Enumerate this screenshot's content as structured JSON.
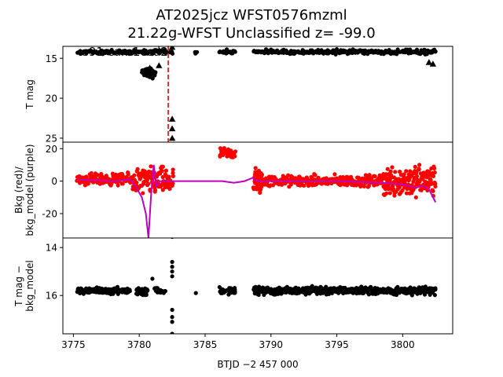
{
  "figure": {
    "title_line1": "AT2025jcz  WFST0576mzml",
    "title_line2": "21.22g-WFST Unclassified z= -99.0"
  },
  "chart_data": [
    {
      "type": "scatter",
      "panel": "top",
      "ylabel": "T mag",
      "ylim": [
        25.5,
        13.5
      ],
      "yinverted": true,
      "yticks": [
        15,
        20,
        25
      ],
      "annotation": "s91 cam1ccd2",
      "vline_x": 3782.2,
      "vline_color": "#d62728",
      "series": [
        {
          "name": "T mag",
          "color": "#000000",
          "marker": "circle",
          "segments": [
            {
              "x0": 3775.3,
              "x1": 3782.5,
              "y": 14.2,
              "jitter": 0.35,
              "n": 110
            },
            {
              "x0": 3780.2,
              "x1": 3781.2,
              "y": 16.8,
              "jitter": 0.9,
              "n": 45
            },
            {
              "x0": 3784.2,
              "x1": 3784.4,
              "y": 14.2,
              "jitter": 0.3,
              "n": 3
            },
            {
              "x0": 3786.1,
              "x1": 3787.3,
              "y": 14.2,
              "jitter": 0.4,
              "n": 20
            },
            {
              "x0": 3788.7,
              "x1": 3802.5,
              "y": 14.2,
              "jitter": 0.4,
              "n": 240
            }
          ]
        },
        {
          "name": "upper limits",
          "color": "#000000",
          "marker": "triangle-up",
          "points": [
            [
              3802.0,
              15.5
            ],
            [
              3802.3,
              15.7
            ],
            [
              3780.8,
              16.2
            ],
            [
              3781.5,
              15.9
            ],
            [
              3782.5,
              13.6
            ],
            [
              3782.5,
              22.6
            ],
            [
              3782.5,
              23.8
            ],
            [
              3782.5,
              25.0
            ]
          ]
        }
      ]
    },
    {
      "type": "line",
      "panel": "middle",
      "ylabel": "Bkg (red)/\nbkg_model (purple)",
      "ylim": [
        -35,
        24
      ],
      "yticks": [
        20,
        0,
        -20
      ],
      "series": [
        {
          "name": "Bkg",
          "color": "#ff0000",
          "marker": "circle",
          "segments": [
            {
              "x0": 3775.3,
              "x1": 3779.5,
              "y": 1,
              "jitter": 5,
              "n": 140
            },
            {
              "x0": 3779.5,
              "x1": 3782.6,
              "y": 0,
              "jitter": 12,
              "n": 120
            },
            {
              "x0": 3786.1,
              "x1": 3787.3,
              "y": 17,
              "jitter": 5,
              "n": 40
            },
            {
              "x0": 3788.7,
              "x1": 3789.3,
              "y": 0,
              "jitter": 12,
              "n": 40
            },
            {
              "x0": 3789.3,
              "x1": 3798.5,
              "y": 0,
              "jitter": 5,
              "n": 260
            },
            {
              "x0": 3798.5,
              "x1": 3802.5,
              "y": 0,
              "jitter": 14,
              "n": 180
            }
          ]
        },
        {
          "name": "bkg_model",
          "color": "#bf00bf",
          "x": [
            3775.3,
            3778.0,
            3779.3,
            3779.7,
            3780.2,
            3780.5,
            3780.7,
            3780.9,
            3781.1,
            3781.3,
            3781.6,
            3782.2,
            3784.3,
            3786.3,
            3787.2,
            3788.0,
            3788.6,
            3789.0,
            3790.0,
            3795.0,
            3798.5,
            3800.0,
            3801.0,
            3801.6,
            3802.0,
            3802.5
          ],
          "y": [
            1,
            0,
            1,
            -3,
            -10,
            -20,
            -35,
            -8,
            10,
            -3,
            0,
            0,
            0,
            0,
            -1,
            0,
            2,
            0,
            0,
            0,
            -1,
            -2,
            -4,
            -3,
            -5,
            -13
          ]
        }
      ]
    },
    {
      "type": "scatter",
      "panel": "bottom",
      "ylabel": "T mag −\nbkg_model",
      "ylim": [
        17.6,
        13.6
      ],
      "yinverted": true,
      "yticks": [
        14,
        16
      ],
      "xlabel": "BTJD −2 457 000",
      "xlim": [
        3774.2,
        3803.8
      ],
      "xticks": [
        3775,
        3780,
        3785,
        3790,
        3795,
        3800
      ],
      "series": [
        {
          "name": "T mag - bkg_model",
          "color": "#000000",
          "marker": "circle",
          "segments": [
            {
              "x0": 3775.3,
              "x1": 3779.3,
              "y": 15.8,
              "jitter": 0.18,
              "n": 180
            },
            {
              "x0": 3779.8,
              "x1": 3780.6,
              "y": 15.85,
              "jitter": 0.25,
              "n": 40
            },
            {
              "x0": 3781.2,
              "x1": 3782.0,
              "y": 15.8,
              "jitter": 0.25,
              "n": 20
            },
            {
              "x0": 3786.1,
              "x1": 3787.3,
              "y": 15.8,
              "jitter": 0.2,
              "n": 40
            },
            {
              "x0": 3788.7,
              "x1": 3802.5,
              "y": 15.8,
              "jitter": 0.22,
              "n": 500
            }
          ],
          "points": [
            [
              3782.5,
              13.55
            ],
            [
              3782.5,
              14.6
            ],
            [
              3782.5,
              14.8
            ],
            [
              3782.5,
              15.0
            ],
            [
              3782.5,
              15.2
            ],
            [
              3781.0,
              15.3
            ],
            [
              3782.5,
              16.6
            ],
            [
              3782.5,
              16.9
            ],
            [
              3782.5,
              17.1
            ],
            [
              3782.5,
              17.6
            ],
            [
              3784.3,
              15.9
            ]
          ]
        }
      ]
    }
  ]
}
